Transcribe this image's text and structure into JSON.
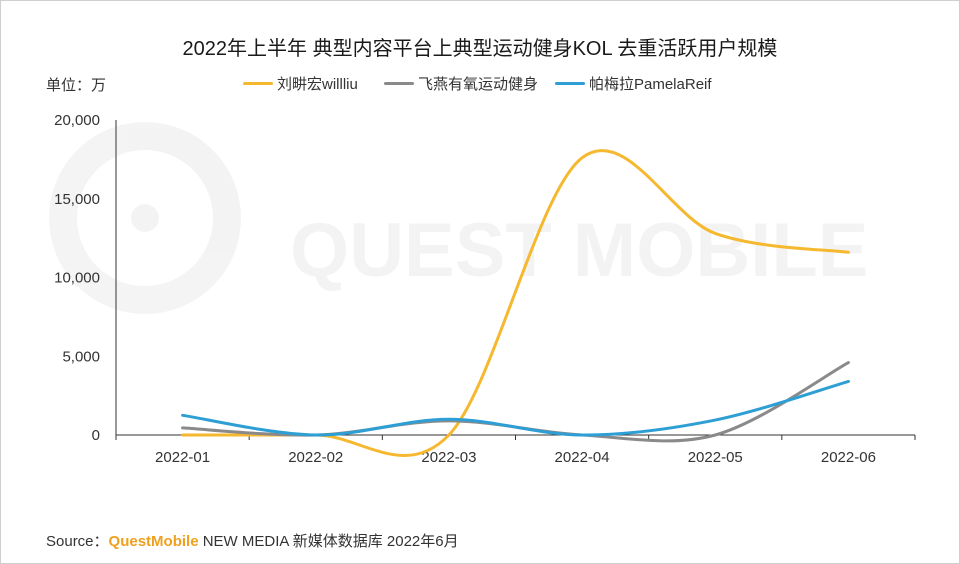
{
  "chart_data": {
    "type": "line",
    "title": "2022年上半年 典型内容平台上典型运动健身KOL 去重活跃用户规模",
    "unit_label": "单位：万",
    "categories": [
      "2022-01",
      "2022-02",
      "2022-03",
      "2022-04",
      "2022-05",
      "2022-06"
    ],
    "ylim": [
      0,
      20000
    ],
    "yticks": [
      "0",
      "5,000",
      "10,000",
      "15,000",
      "20,000"
    ],
    "ytick_values": [
      0,
      5000,
      10000,
      15000,
      20000
    ],
    "grid": false,
    "smooth": true,
    "legend_position": "top",
    "series": [
      {
        "name": "刘畊宏willliu",
        "color": "#f5b82e",
        "values": [
          0,
          0,
          0,
          17600,
          12800,
          11600
        ]
      },
      {
        "name": "飞燕有氧运动健身",
        "color": "#8a8a8a",
        "values": [
          450,
          0,
          900,
          0,
          0,
          4600
        ]
      },
      {
        "name": "帕梅拉PamelaReif",
        "color": "#2e9fd4",
        "values": [
          1250,
          0,
          1000,
          0,
          950,
          3400
        ]
      }
    ],
    "watermark": "QUEST MOBILE"
  },
  "source": {
    "prefix": "Source：",
    "brand": "QuestMobile",
    "rest": " NEW MEDIA 新媒体数据库 2022年6月"
  }
}
